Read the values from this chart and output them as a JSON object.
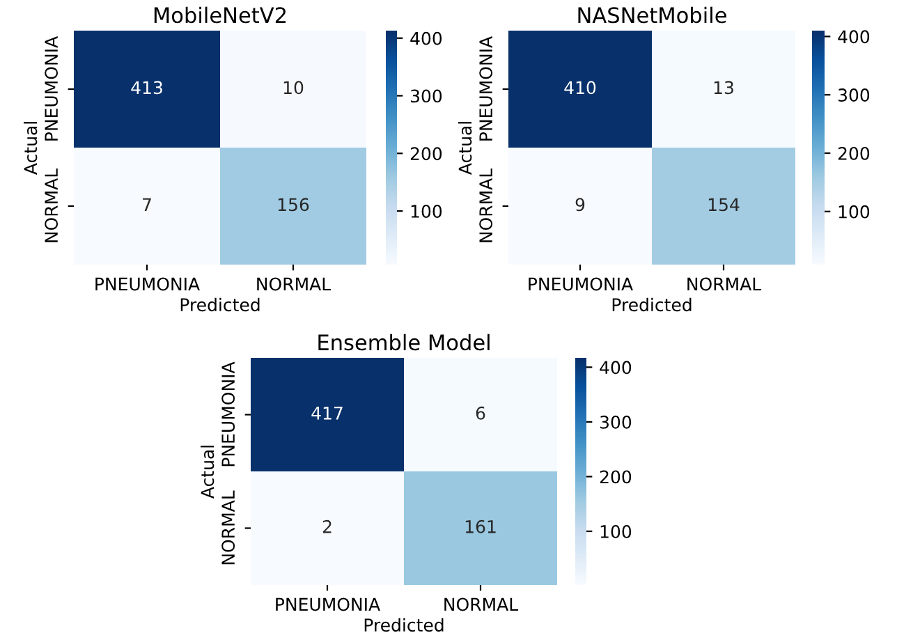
{
  "chart_data": [
    {
      "type": "heatmap",
      "title": "MobileNetV2",
      "xlabel": "Predicted",
      "ylabel": "Actual",
      "categories": [
        "PNEUMONIA",
        "NORMAL"
      ],
      "y_categories": [
        "PNEUMONIA",
        "NORMAL"
      ],
      "cells": [
        [
          413,
          10
        ],
        [
          7,
          156
        ]
      ],
      "clim": [
        7,
        413
      ],
      "cticks": [
        100,
        200,
        300,
        400
      ],
      "data_labels": true
    },
    {
      "type": "heatmap",
      "title": "NASNetMobile",
      "xlabel": "Predicted",
      "ylabel": "Actual",
      "categories": [
        "PNEUMONIA",
        "NORMAL"
      ],
      "y_categories": [
        "PNEUMONIA",
        "NORMAL"
      ],
      "cells": [
        [
          410,
          13
        ],
        [
          9,
          154
        ]
      ],
      "clim": [
        9,
        410
      ],
      "cticks": [
        100,
        200,
        300,
        400
      ],
      "data_labels": true
    },
    {
      "type": "heatmap",
      "title": "Ensemble Model",
      "xlabel": "Predicted",
      "ylabel": "Actual",
      "categories": [
        "PNEUMONIA",
        "NORMAL"
      ],
      "y_categories": [
        "PNEUMONIA",
        "NORMAL"
      ],
      "cells": [
        [
          417,
          6
        ],
        [
          2,
          161
        ]
      ],
      "clim": [
        2,
        417
      ],
      "cticks": [
        100,
        200,
        300,
        400
      ],
      "data_labels": true
    }
  ]
}
